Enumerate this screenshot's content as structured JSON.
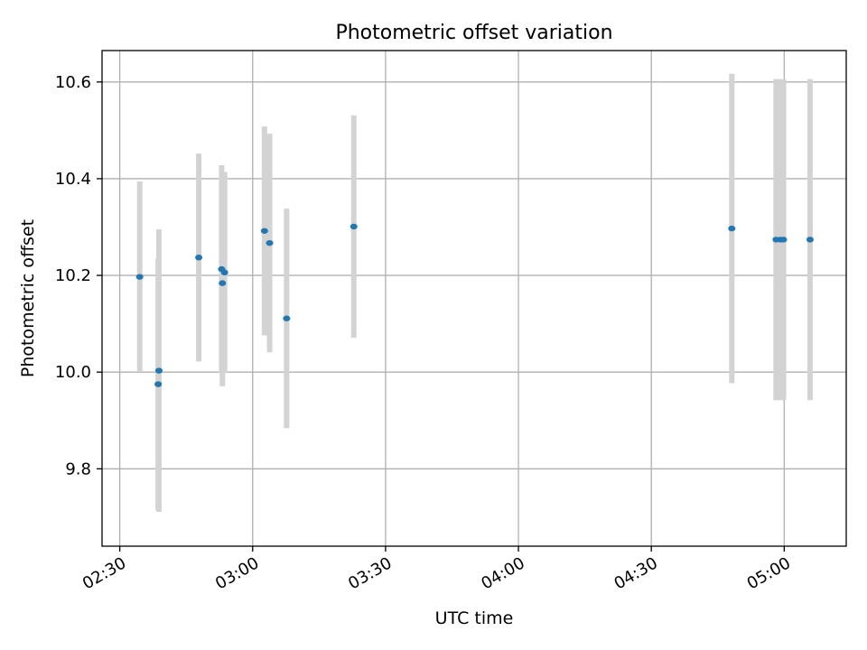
{
  "chart_data": {
    "type": "scatter",
    "title": "Photometric offset variation",
    "xlabel": "UTC time",
    "ylabel": "Photometric offset",
    "x_unit": "HH:MM",
    "xlim": [
      "02:26",
      "05:14"
    ],
    "ylim": [
      9.64,
      10.665
    ],
    "x_ticks": [
      "02:30",
      "03:00",
      "03:30",
      "04:00",
      "04:30",
      "05:00"
    ],
    "y_ticks": [
      9.8,
      10.0,
      10.2,
      10.4,
      10.6
    ],
    "y_tick_labels": [
      "9.8",
      "10.0",
      "10.2",
      "10.4",
      "10.6"
    ],
    "grid": true,
    "colors": {
      "points": "#1f77b4",
      "errorbars": "#d3d3d3",
      "grid": "#b0b0b0"
    },
    "points": [
      {
        "x": "02:34:30",
        "y": 10.197,
        "err": 0.197
      },
      {
        "x": "02:38:50",
        "y": 10.003,
        "err": 0.292
      },
      {
        "x": "02:38:40",
        "y": 9.975,
        "err": 0.26
      },
      {
        "x": "02:47:50",
        "y": 10.237,
        "err": 0.215
      },
      {
        "x": "02:53:00",
        "y": 10.213,
        "err": 0.215
      },
      {
        "x": "02:53:10",
        "y": 10.184,
        "err": 0.213
      },
      {
        "x": "02:53:40",
        "y": 10.206,
        "err": 0.208
      },
      {
        "x": "03:02:40",
        "y": 10.292,
        "err": 0.216
      },
      {
        "x": "03:03:50",
        "y": 10.267,
        "err": 0.226
      },
      {
        "x": "03:07:40",
        "y": 10.111,
        "err": 0.227
      },
      {
        "x": "03:22:50",
        "y": 10.301,
        "err": 0.23
      },
      {
        "x": "04:48:10",
        "y": 10.297,
        "err": 0.32
      },
      {
        "x": "04:58:10",
        "y": 10.274,
        "err": 0.332
      },
      {
        "x": "04:59:10",
        "y": 10.274,
        "err": 0.332
      },
      {
        "x": "04:59:50",
        "y": 10.274,
        "err": 0.332
      },
      {
        "x": "05:05:50",
        "y": 10.274,
        "err": 0.332
      }
    ]
  }
}
